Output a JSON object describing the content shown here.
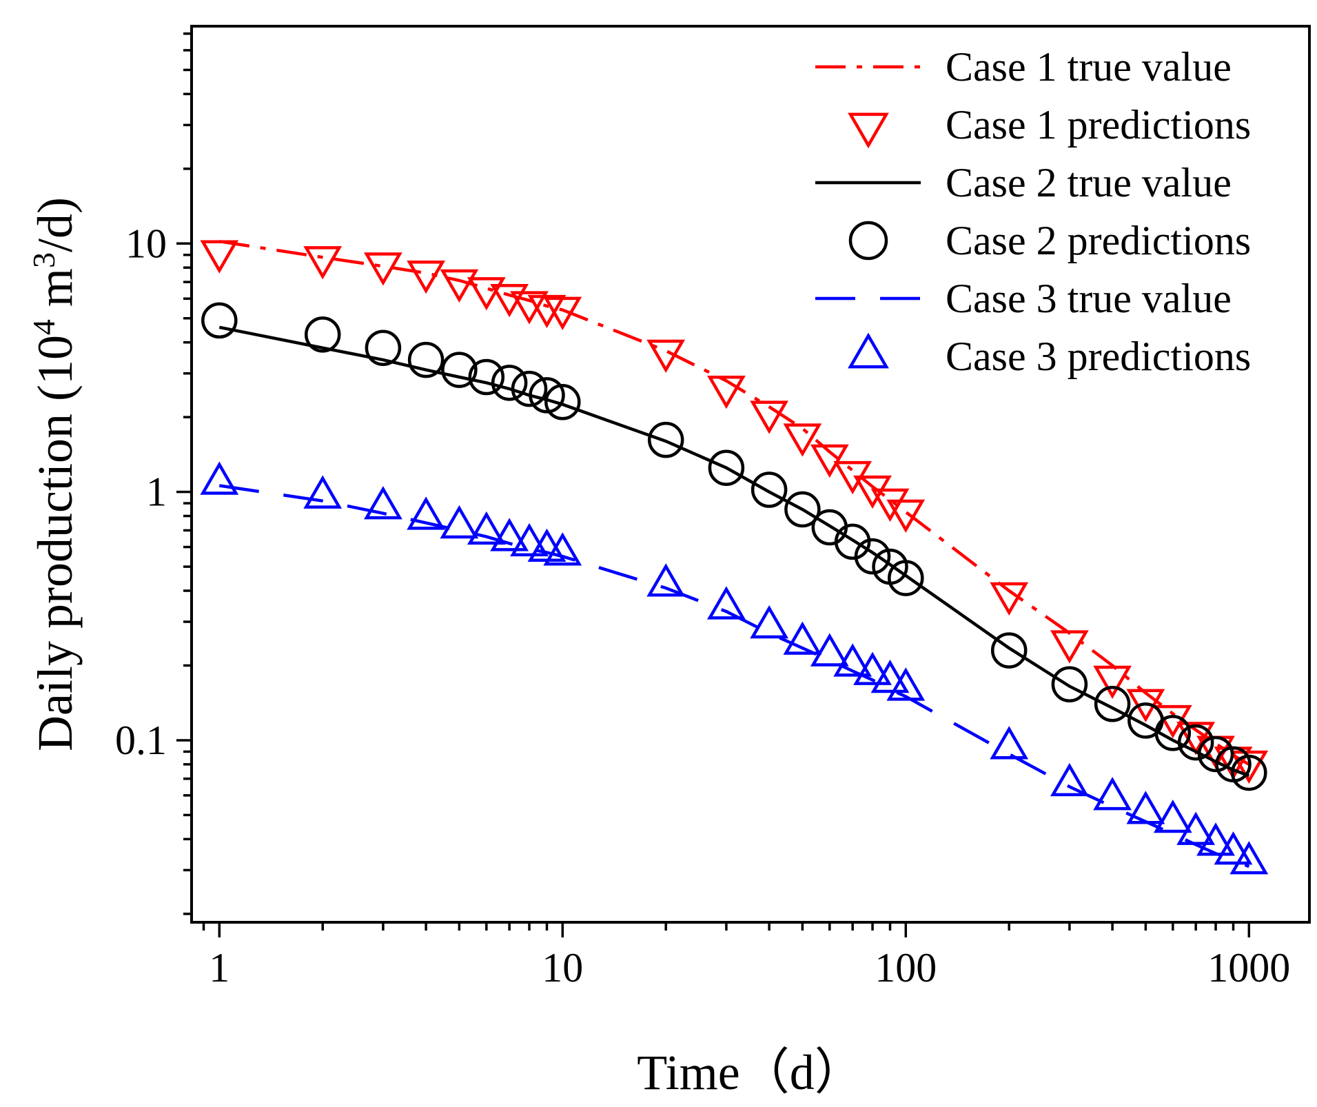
{
  "chart_data": {
    "type": "line",
    "title": "",
    "xlabel": "Time（d）",
    "ylabel_main": "Daily production (10",
    "ylabel_sup1": "4",
    "ylabel_mid": " m",
    "ylabel_sup2": "3",
    "ylabel_end": "/d)",
    "xscale": "log",
    "yscale": "log",
    "xlim": [
      0.83,
      1500
    ],
    "ylim": [
      0.0185,
      75
    ],
    "x_ticks": [
      1,
      10,
      100,
      1000
    ],
    "x_tick_labels": [
      "1",
      "10",
      "100",
      "1000"
    ],
    "y_ticks": [
      0.1,
      1,
      10
    ],
    "y_tick_labels": [
      "0.1",
      "1",
      "10"
    ],
    "grid": false,
    "legend_position": "top-right",
    "colors": {
      "case1": "#ff0000",
      "case2": "#000000",
      "case3": "#0000ff"
    },
    "series": [
      {
        "name": "Case 1 true value",
        "kind": "line",
        "style": "dash-dot",
        "color": "#ff0000",
        "x": [
          1,
          2,
          3,
          4,
          5,
          6,
          7,
          8,
          9,
          10,
          20,
          30,
          40,
          50,
          60,
          70,
          80,
          90,
          100,
          200,
          300,
          400,
          500,
          600,
          700,
          800,
          900,
          1000
        ],
        "y": [
          10.2,
          8.8,
          8.1,
          7.6,
          7.1,
          6.6,
          6.2,
          5.9,
          5.6,
          5.4,
          3.7,
          2.8,
          2.2,
          1.8,
          1.45,
          1.22,
          1.05,
          0.93,
          0.83,
          0.4,
          0.27,
          0.2,
          0.155,
          0.128,
          0.11,
          0.097,
          0.087,
          0.08
        ]
      },
      {
        "name": "Case 1 predictions",
        "kind": "marker",
        "marker": "triangle-down",
        "color": "#ff0000",
        "x": [
          1,
          2,
          3,
          4,
          5,
          6,
          7,
          8,
          9,
          10,
          20,
          30,
          40,
          50,
          60,
          70,
          80,
          90,
          100,
          200,
          300,
          400,
          500,
          600,
          700,
          800,
          900,
          1000
        ],
        "y": [
          9.3,
          8.8,
          8.3,
          7.7,
          7.1,
          6.6,
          6.2,
          5.8,
          5.6,
          5.5,
          3.7,
          2.65,
          2.1,
          1.7,
          1.4,
          1.2,
          1.05,
          0.93,
          0.84,
          0.39,
          0.25,
          0.18,
          0.145,
          0.125,
          0.107,
          0.094,
          0.085,
          0.082
        ]
      },
      {
        "name": "Case 2 true value",
        "kind": "line",
        "style": "solid",
        "color": "#000000",
        "x": [
          1,
          2,
          3,
          4,
          5,
          6,
          7,
          8,
          9,
          10,
          20,
          30,
          40,
          50,
          60,
          70,
          80,
          90,
          100,
          200,
          300,
          400,
          500,
          600,
          700,
          800,
          900,
          1000
        ],
        "y": [
          4.6,
          3.8,
          3.4,
          3.1,
          2.9,
          2.75,
          2.6,
          2.45,
          2.35,
          2.25,
          1.6,
          1.25,
          1.0,
          0.85,
          0.73,
          0.64,
          0.57,
          0.51,
          0.46,
          0.235,
          0.165,
          0.135,
          0.115,
          0.1,
          0.09,
          0.082,
          0.076,
          0.072
        ]
      },
      {
        "name": "Case 2 predictions",
        "kind": "marker",
        "marker": "circle",
        "color": "#000000",
        "x": [
          1,
          2,
          3,
          4,
          5,
          6,
          7,
          8,
          9,
          10,
          20,
          30,
          40,
          50,
          60,
          70,
          80,
          90,
          100,
          200,
          300,
          400,
          500,
          600,
          700,
          800,
          900,
          1000
        ],
        "y": [
          4.9,
          4.3,
          3.8,
          3.4,
          3.1,
          2.9,
          2.75,
          2.6,
          2.45,
          2.3,
          1.62,
          1.25,
          1.02,
          0.85,
          0.72,
          0.63,
          0.55,
          0.5,
          0.45,
          0.23,
          0.168,
          0.14,
          0.12,
          0.107,
          0.098,
          0.088,
          0.08,
          0.074
        ]
      },
      {
        "name": "Case 3 true value",
        "kind": "line",
        "style": "long-dash",
        "color": "#0000ff",
        "x": [
          1,
          2,
          3,
          4,
          5,
          6,
          7,
          8,
          9,
          10,
          20,
          30,
          40,
          50,
          60,
          70,
          80,
          90,
          100,
          200,
          300,
          400,
          500,
          600,
          700,
          800,
          900,
          1000
        ],
        "y": [
          1.06,
          0.92,
          0.82,
          0.75,
          0.7,
          0.66,
          0.62,
          0.59,
          0.57,
          0.55,
          0.41,
          0.33,
          0.27,
          0.235,
          0.21,
          0.19,
          0.175,
          0.16,
          0.15,
          0.088,
          0.065,
          0.054,
          0.047,
          0.042,
          0.038,
          0.035,
          0.033,
          0.031
        ]
      },
      {
        "name": "Case 3 predictions",
        "kind": "marker",
        "marker": "triangle-up",
        "color": "#0000ff",
        "x": [
          1,
          2,
          3,
          4,
          5,
          6,
          7,
          8,
          9,
          10,
          20,
          30,
          40,
          50,
          60,
          70,
          80,
          90,
          100,
          200,
          300,
          400,
          500,
          600,
          700,
          800,
          900,
          1000
        ],
        "y": [
          1.08,
          0.95,
          0.86,
          0.78,
          0.72,
          0.68,
          0.64,
          0.61,
          0.58,
          0.56,
          0.42,
          0.34,
          0.285,
          0.245,
          0.22,
          0.2,
          0.185,
          0.172,
          0.16,
          0.093,
          0.066,
          0.058,
          0.051,
          0.047,
          0.042,
          0.038,
          0.035,
          0.032
        ]
      }
    ]
  }
}
